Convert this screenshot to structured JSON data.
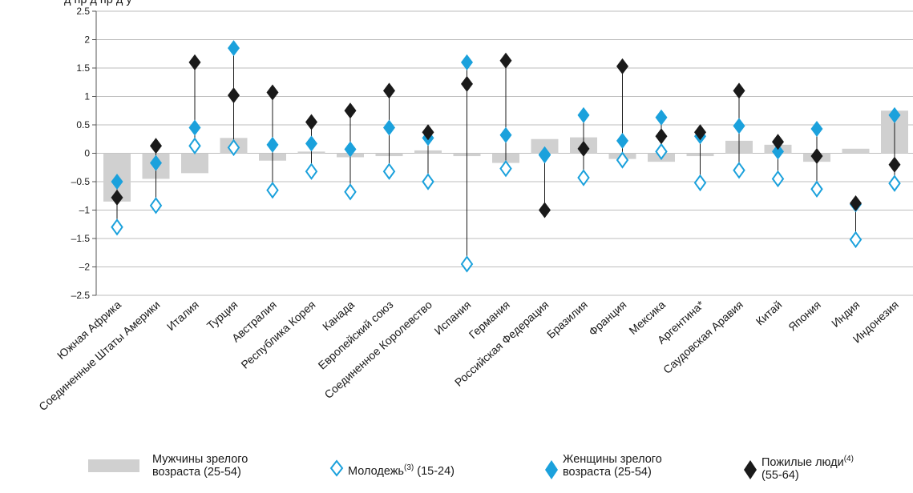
{
  "chart_data": {
    "type": "bar",
    "ylim": [
      -2.5,
      2.5
    ],
    "yticks": [
      "2.5",
      "2",
      "1.5",
      "1",
      "0.5",
      "0",
      "–0.5",
      "–1",
      "–1.5",
      "–2",
      "–2.5"
    ],
    "categories": [
      "Южная Африка",
      "Соединенные Штаты Америки",
      "Италия",
      "Турция",
      "Австралия",
      "Республика Корея",
      "Канада",
      "Европейский союз",
      "Соединенное Королевство",
      "Испания",
      "Германия",
      "Российская Федерация",
      "Бразилия",
      "Франция",
      "Мексика",
      "Аргентина*",
      "Саудовская Аравия",
      "Китай",
      "Япония",
      "Индия",
      "Индонезия"
    ],
    "series": [
      {
        "name": "Мужчины зрелого возраста (25-54)",
        "marker": "bar",
        "color": "#d0d0d0",
        "values": [
          -0.85,
          -0.45,
          -0.35,
          0.27,
          -0.13,
          0.03,
          -0.07,
          -0.05,
          0.05,
          -0.05,
          -0.17,
          0.25,
          0.28,
          -0.1,
          -0.15,
          -0.05,
          0.22,
          0.15,
          -0.15,
          0.08,
          0.75
        ]
      },
      {
        "name": "Молодежь(3) (15-24)",
        "marker": "open-diamond",
        "color": "#1ba1dc",
        "values": [
          -1.3,
          -0.92,
          0.13,
          0.1,
          -0.65,
          -0.32,
          -0.68,
          -0.32,
          -0.5,
          -1.95,
          -0.27,
          -0.03,
          -0.43,
          -0.12,
          0.03,
          -0.52,
          -0.3,
          -0.45,
          -0.63,
          -1.52,
          -0.53
        ]
      },
      {
        "name": "Женщины зрелого возраста (25-54)",
        "marker": "filled-diamond",
        "color": "#1ba1dc",
        "values": [
          -0.5,
          -0.17,
          0.45,
          1.85,
          0.15,
          0.17,
          0.07,
          0.45,
          0.27,
          1.6,
          0.32,
          -0.02,
          0.67,
          0.22,
          0.63,
          0.3,
          0.48,
          0.03,
          0.43,
          -0.9,
          0.67
        ]
      },
      {
        "name": "Пожилые люди(4) (55-64)",
        "marker": "black-diamond",
        "color": "#1a1a1a",
        "values": [
          -0.78,
          0.13,
          1.6,
          1.02,
          1.07,
          0.55,
          0.75,
          1.1,
          0.37,
          1.22,
          1.63,
          -1.0,
          0.08,
          1.53,
          0.3,
          0.37,
          1.1,
          0.2,
          -0.05,
          -0.88,
          -0.2
        ]
      }
    ]
  },
  "legend": {
    "men": {
      "line1": "Мужчины зрелого",
      "line2": "возраста (25-54)"
    },
    "youth": {
      "pre": "Молодежь",
      "sup": "(3)",
      "post": " (15-24)"
    },
    "women": {
      "line1": "Женщины зрелого",
      "line2": "возраста (25-54)"
    },
    "elderly": {
      "pre": "Пожилые люди",
      "sup": "(4)",
      "line2": "(55-64)"
    }
  },
  "caption_fragment": "д  пр д                  пр д          у"
}
